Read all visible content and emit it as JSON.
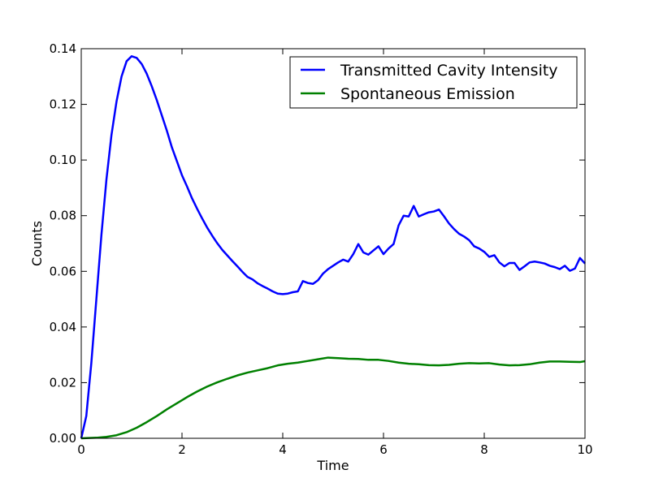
{
  "chart_data": {
    "type": "line",
    "title": "",
    "xlabel": "Time",
    "ylabel": "Counts",
    "xlim": [
      0,
      10
    ],
    "ylim": [
      0,
      0.14
    ],
    "xticks": [
      0,
      2,
      4,
      6,
      8,
      10
    ],
    "xtick_labels": [
      "0",
      "2",
      "4",
      "6",
      "8",
      "10"
    ],
    "yticks": [
      0,
      0.02,
      0.04,
      0.06,
      0.08,
      0.1,
      0.12,
      0.14
    ],
    "ytick_labels": [
      "0.00",
      "0.02",
      "0.04",
      "0.06",
      "0.08",
      "0.10",
      "0.12",
      "0.14"
    ],
    "grid": false,
    "legend_position": "top-right",
    "series": [
      {
        "name": "Transmitted Cavity Intensity",
        "color": "#0000ff",
        "points": [
          [
            0,
            0
          ],
          [
            0.1,
            0.008
          ],
          [
            0.2,
            0.027
          ],
          [
            0.3,
            0.05
          ],
          [
            0.4,
            0.073
          ],
          [
            0.5,
            0.093
          ],
          [
            0.6,
            0.109
          ],
          [
            0.7,
            0.121
          ],
          [
            0.8,
            0.13
          ],
          [
            0.9,
            0.1355
          ],
          [
            1.0,
            0.1373
          ],
          [
            1.1,
            0.1367
          ],
          [
            1.2,
            0.1345
          ],
          [
            1.3,
            0.131
          ],
          [
            1.4,
            0.1265
          ],
          [
            1.5,
            0.1215
          ],
          [
            1.6,
            0.116
          ],
          [
            1.7,
            0.1105
          ],
          [
            1.8,
            0.1045
          ],
          [
            1.9,
            0.0995
          ],
          [
            2.0,
            0.0945
          ],
          [
            2.1,
            0.0905
          ],
          [
            2.2,
            0.0862
          ],
          [
            2.3,
            0.0825
          ],
          [
            2.4,
            0.079
          ],
          [
            2.5,
            0.0757
          ],
          [
            2.6,
            0.0728
          ],
          [
            2.7,
            0.0701
          ],
          [
            2.8,
            0.0677
          ],
          [
            2.9,
            0.0657
          ],
          [
            3.0,
            0.0637
          ],
          [
            3.1,
            0.0618
          ],
          [
            3.2,
            0.0598
          ],
          [
            3.3,
            0.058
          ],
          [
            3.4,
            0.0571
          ],
          [
            3.5,
            0.0557
          ],
          [
            3.6,
            0.0547
          ],
          [
            3.7,
            0.0538
          ],
          [
            3.8,
            0.0528
          ],
          [
            3.9,
            0.052
          ],
          [
            4.0,
            0.0518
          ],
          [
            4.1,
            0.052
          ],
          [
            4.2,
            0.0525
          ],
          [
            4.3,
            0.0528
          ],
          [
            4.4,
            0.0565
          ],
          [
            4.5,
            0.0558
          ],
          [
            4.6,
            0.0555
          ],
          [
            4.7,
            0.0568
          ],
          [
            4.8,
            0.0592
          ],
          [
            4.9,
            0.0608
          ],
          [
            5.0,
            0.062
          ],
          [
            5.1,
            0.0632
          ],
          [
            5.2,
            0.0642
          ],
          [
            5.3,
            0.0635
          ],
          [
            5.4,
            0.0662
          ],
          [
            5.5,
            0.0698
          ],
          [
            5.6,
            0.0668
          ],
          [
            5.7,
            0.066
          ],
          [
            5.8,
            0.0675
          ],
          [
            5.9,
            0.069
          ],
          [
            6.0,
            0.0662
          ],
          [
            6.1,
            0.0682
          ],
          [
            6.2,
            0.0698
          ],
          [
            6.3,
            0.0765
          ],
          [
            6.4,
            0.08
          ],
          [
            6.5,
            0.0797
          ],
          [
            6.6,
            0.0835
          ],
          [
            6.7,
            0.0797
          ],
          [
            6.8,
            0.0805
          ],
          [
            6.9,
            0.0812
          ],
          [
            7.0,
            0.0815
          ],
          [
            7.1,
            0.0822
          ],
          [
            7.2,
            0.0798
          ],
          [
            7.3,
            0.0772
          ],
          [
            7.4,
            0.0752
          ],
          [
            7.5,
            0.0735
          ],
          [
            7.6,
            0.0725
          ],
          [
            7.7,
            0.0712
          ],
          [
            7.8,
            0.069
          ],
          [
            7.9,
            0.0682
          ],
          [
            8.0,
            0.067
          ],
          [
            8.1,
            0.0652
          ],
          [
            8.2,
            0.0658
          ],
          [
            8.3,
            0.0632
          ],
          [
            8.4,
            0.0618
          ],
          [
            8.5,
            0.063
          ],
          [
            8.6,
            0.063
          ],
          [
            8.7,
            0.0605
          ],
          [
            8.8,
            0.0618
          ],
          [
            8.9,
            0.0632
          ],
          [
            9.0,
            0.0635
          ],
          [
            9.1,
            0.0632
          ],
          [
            9.2,
            0.0628
          ],
          [
            9.3,
            0.062
          ],
          [
            9.4,
            0.0615
          ],
          [
            9.5,
            0.0608
          ],
          [
            9.6,
            0.062
          ],
          [
            9.7,
            0.0602
          ],
          [
            9.8,
            0.061
          ],
          [
            9.9,
            0.0648
          ],
          [
            10.0,
            0.0628
          ]
        ]
      },
      {
        "name": "Spontaneous Emission",
        "color": "#008000",
        "points": [
          [
            0,
            0
          ],
          [
            0.3,
            0.0002
          ],
          [
            0.5,
            0.0005
          ],
          [
            0.7,
            0.0011
          ],
          [
            0.9,
            0.0022
          ],
          [
            1.1,
            0.0038
          ],
          [
            1.3,
            0.0058
          ],
          [
            1.5,
            0.008
          ],
          [
            1.7,
            0.0104
          ],
          [
            1.9,
            0.0126
          ],
          [
            2.1,
            0.0148
          ],
          [
            2.3,
            0.0168
          ],
          [
            2.5,
            0.0186
          ],
          [
            2.7,
            0.0201
          ],
          [
            2.9,
            0.0214
          ],
          [
            3.1,
            0.0226
          ],
          [
            3.3,
            0.0236
          ],
          [
            3.5,
            0.0244
          ],
          [
            3.7,
            0.0252
          ],
          [
            3.9,
            0.0262
          ],
          [
            4.1,
            0.0268
          ],
          [
            4.3,
            0.0272
          ],
          [
            4.5,
            0.0278
          ],
          [
            4.7,
            0.0284
          ],
          [
            4.9,
            0.029
          ],
          [
            5.1,
            0.0288
          ],
          [
            5.3,
            0.0286
          ],
          [
            5.5,
            0.0285
          ],
          [
            5.7,
            0.0282
          ],
          [
            5.9,
            0.0282
          ],
          [
            6.1,
            0.0278
          ],
          [
            6.3,
            0.0272
          ],
          [
            6.5,
            0.0268
          ],
          [
            6.7,
            0.0266
          ],
          [
            6.9,
            0.0263
          ],
          [
            7.1,
            0.0262
          ],
          [
            7.3,
            0.0264
          ],
          [
            7.5,
            0.0268
          ],
          [
            7.7,
            0.027
          ],
          [
            7.9,
            0.0269
          ],
          [
            8.1,
            0.027
          ],
          [
            8.3,
            0.0265
          ],
          [
            8.5,
            0.0262
          ],
          [
            8.7,
            0.0263
          ],
          [
            8.9,
            0.0266
          ],
          [
            9.1,
            0.0272
          ],
          [
            9.3,
            0.0276
          ],
          [
            9.5,
            0.0276
          ],
          [
            9.7,
            0.0275
          ],
          [
            9.9,
            0.0274
          ],
          [
            10.0,
            0.0277
          ]
        ]
      }
    ]
  }
}
